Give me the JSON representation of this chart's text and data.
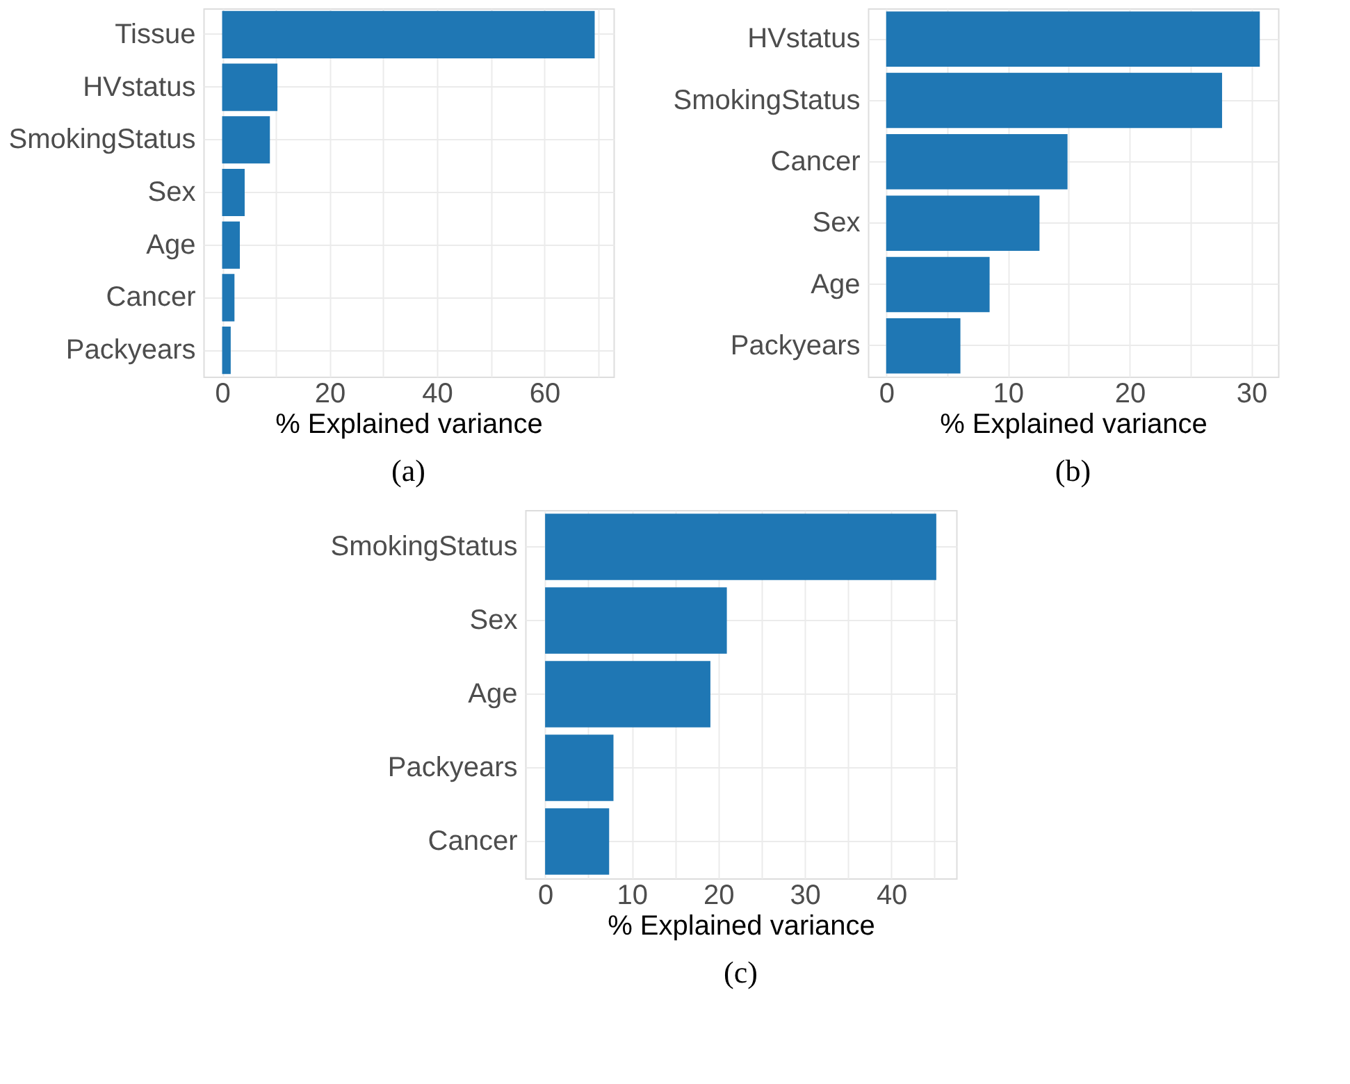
{
  "chart_data": [
    {
      "type": "bar",
      "orientation": "horizontal",
      "categories": [
        "Tissue",
        "HVstatus",
        "SmokingStatus",
        "Sex",
        "Age",
        "Cancer",
        "Packyears"
      ],
      "values": [
        69.4,
        10.3,
        8.9,
        4.2,
        3.3,
        2.3,
        1.6
      ],
      "color": "#1f77b4",
      "xlabel": "% Explained variance",
      "xlim": [
        -3.5,
        72.9
      ],
      "xticks": [
        0,
        {
          "value": 10,
          "label": null
        },
        20,
        {
          "value": 30,
          "label": null
        },
        40,
        {
          "value": 50,
          "label": null
        },
        60,
        {
          "value": 70,
          "label": null
        }
      ],
      "grid": true,
      "annotations": [
        "(a)"
      ]
    },
    {
      "type": "bar",
      "orientation": "horizontal",
      "categories": [
        "HVstatus",
        "SmokingStatus",
        "Cancer",
        "Sex",
        "Age",
        "Packyears"
      ],
      "values": [
        30.7,
        27.6,
        14.9,
        12.6,
        8.5,
        6.1
      ],
      "color": "#1f77b4",
      "xlabel": "% Explained variance",
      "xlim": [
        -1.5,
        32.2
      ],
      "xticks": [
        0,
        {
          "value": 5,
          "label": null
        },
        10,
        {
          "value": 15,
          "label": null
        },
        20,
        {
          "value": 25,
          "label": null
        },
        30
      ],
      "grid": true,
      "annotations": [
        "(b)"
      ]
    },
    {
      "type": "bar",
      "orientation": "horizontal",
      "categories": [
        "SmokingStatus",
        "Sex",
        "Age",
        "Packyears",
        "Cancer"
      ],
      "values": [
        45.2,
        21.0,
        19.1,
        7.9,
        7.4
      ],
      "color": "#1f77b4",
      "xlabel": "% Explained variance",
      "xlim": [
        -2.3,
        47.5
      ],
      "xticks": [
        0,
        {
          "value": 5,
          "label": null
        },
        10,
        {
          "value": 15,
          "label": null
        },
        20,
        {
          "value": 25,
          "label": null
        },
        30,
        {
          "value": 35,
          "label": null
        },
        40,
        {
          "value": 45,
          "label": null
        }
      ],
      "grid": true,
      "annotations": [
        "(c)"
      ]
    }
  ]
}
